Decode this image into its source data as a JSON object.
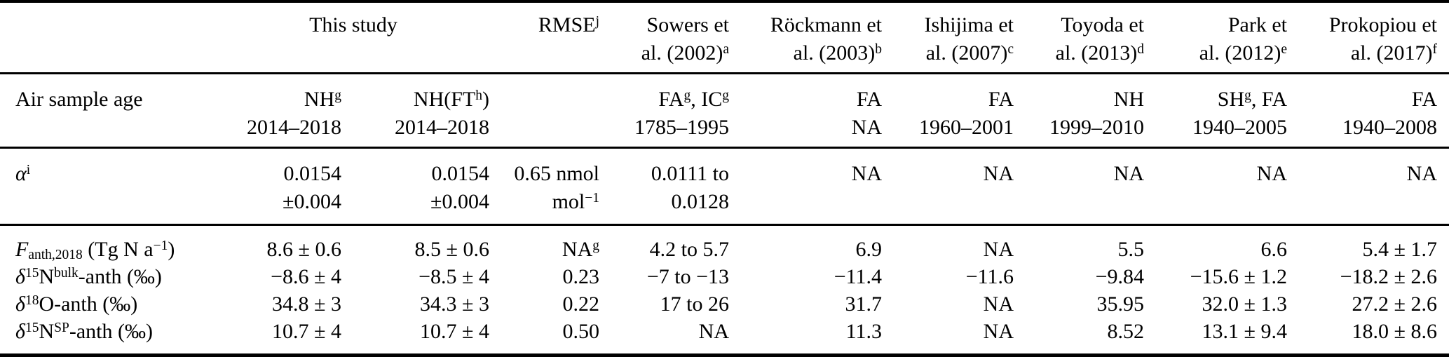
{
  "table": {
    "header": {
      "group": "This study",
      "cols": [
        {
          "id": "rmse",
          "lines": [
            "RMSE^{j}"
          ]
        },
        {
          "id": "sowers",
          "lines": [
            "Sowers et",
            "al. (2002)^{a}"
          ]
        },
        {
          "id": "rockmann",
          "lines": [
            "Röckmann et",
            "al. (2003)^{b}"
          ]
        },
        {
          "id": "ishijima",
          "lines": [
            "Ishijima et",
            "al. (2007)^{c}"
          ]
        },
        {
          "id": "toyoda",
          "lines": [
            "Toyoda et",
            "al. (2013)^{d}"
          ]
        },
        {
          "id": "park",
          "lines": [
            "Park et",
            "al. (2012)^{e}"
          ]
        },
        {
          "id": "prokopiou",
          "lines": [
            "Prokopiou et",
            "al. (2017)^{f}"
          ]
        }
      ]
    },
    "col_ids": [
      "nh",
      "nh-ft",
      "rmse",
      "sowers",
      "rockmann",
      "ishijima",
      "toyoda",
      "park",
      "prokopiou"
    ],
    "sections": [
      {
        "name": "section-air-sample-age",
        "rows": [
          {
            "name": "air-sample-age",
            "label": "Air sample age",
            "cells": [
              [
                "NH^{g}",
                "2014–2018"
              ],
              [
                "NH(FT^{h})",
                "2014–2018"
              ],
              [],
              [
                "FA^{g}, IC^{g}",
                "1785–1995"
              ],
              [
                "FA",
                "NA"
              ],
              [
                "FA",
                "1960–2001"
              ],
              [
                "NH",
                "1999–2010"
              ],
              [
                "SH^{g}, FA",
                "1940–2005"
              ],
              [
                "FA",
                "1940–2008"
              ]
            ]
          }
        ]
      },
      {
        "name": "section-alpha",
        "rows": [
          {
            "name": "alpha",
            "label": "*α*^{i}",
            "cells": [
              [
                "0.0154",
                "±0.004"
              ],
              [
                "0.0154",
                "±0.004"
              ],
              [
                "0.65 nmol",
                "mol^{−1}"
              ],
              [
                "0.0111 to",
                "0.0128"
              ],
              [
                "NA"
              ],
              [
                "NA"
              ],
              [
                "NA"
              ],
              [
                "NA"
              ],
              [
                "NA"
              ]
            ]
          }
        ]
      },
      {
        "name": "section-results",
        "rows": [
          {
            "name": "f-anth-2018",
            "label": "*F*_{anth,2018} (Tg N a^{−1})",
            "cells": [
              [
                "8.6 ± 0.6"
              ],
              [
                "8.5 ± 0.6"
              ],
              [
                "NA^{g}"
              ],
              [
                "4.2 to 5.7"
              ],
              [
                "6.9"
              ],
              [
                "NA"
              ],
              [
                "5.5"
              ],
              [
                "6.6"
              ],
              [
                "5.4 ± 1.7"
              ]
            ]
          },
          {
            "name": "d15n-bulk-anth",
            "label": "*δ*^{15}N^{bulk}-anth (‰)",
            "cells": [
              [
                "−8.6 ± 4"
              ],
              [
                "−8.5 ± 4"
              ],
              [
                "0.23"
              ],
              [
                "−7 to −13"
              ],
              [
                "−11.4"
              ],
              [
                "−11.6"
              ],
              [
                "−9.84"
              ],
              [
                "−15.6 ± 1.2"
              ],
              [
                "−18.2 ± 2.6"
              ]
            ]
          },
          {
            "name": "d18o-anth",
            "label": "*δ*^{18}O-anth (‰)",
            "cells": [
              [
                "34.8 ± 3"
              ],
              [
                "34.3 ± 3"
              ],
              [
                "0.22"
              ],
              [
                "17 to 26"
              ],
              [
                "31.7"
              ],
              [
                "NA"
              ],
              [
                "35.95"
              ],
              [
                "32.0 ± 1.3"
              ],
              [
                "27.2 ± 2.6"
              ]
            ]
          },
          {
            "name": "d15n-sp-anth",
            "label": "*δ*^{15}N^{SP}-anth (‰)",
            "cells": [
              [
                "10.7 ± 4"
              ],
              [
                "10.7 ± 4"
              ],
              [
                "0.50"
              ],
              [
                "NA"
              ],
              [
                "11.3"
              ],
              [
                "NA"
              ],
              [
                "8.52"
              ],
              [
                "13.1 ± 9.4"
              ],
              [
                "18.0 ± 8.6"
              ]
            ]
          }
        ]
      }
    ]
  }
}
